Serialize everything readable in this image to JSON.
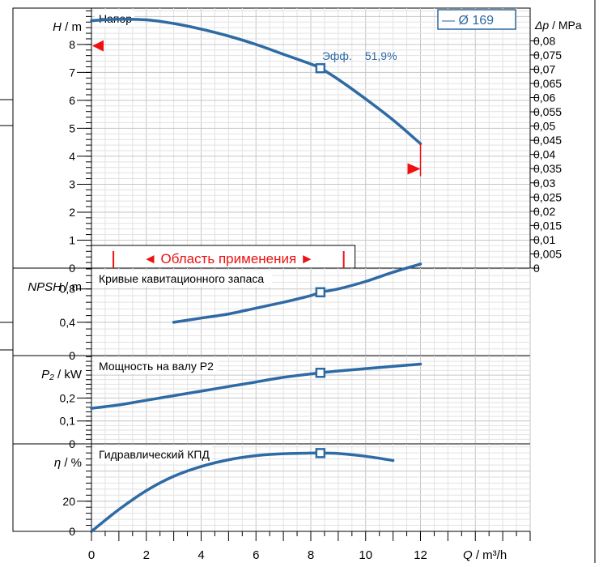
{
  "colors": {
    "curve": "#2e6aa4",
    "grid_minor": "#e2e2e2",
    "grid_major": "#c6c6c6",
    "marker_red": "#ee1111",
    "text": "#000000"
  },
  "legend": {
    "label": "— Ø 169"
  },
  "x_axis": {
    "label_q": "Q",
    "label_unit": " / m³/h",
    "ticks": [
      "0",
      "2",
      "4",
      "6",
      "8",
      "10",
      "12"
    ],
    "tick_values": [
      0,
      2,
      4,
      6,
      8,
      10,
      12
    ],
    "xlim": [
      0,
      16
    ]
  },
  "operating_point_q": 8.35,
  "panels": {
    "head": {
      "title": "Напор",
      "ylabel_sym": "H",
      "ylabel_unit": " / m",
      "yticks": [
        "0",
        "1",
        "2",
        "3",
        "4",
        "5",
        "6",
        "7",
        "8"
      ],
      "ytick_values": [
        0,
        1,
        2,
        3,
        4,
        5,
        6,
        7,
        8
      ],
      "ylim": [
        0,
        9.3
      ],
      "dp_label_sym": "Δp",
      "dp_label_unit": " / MPa",
      "dp_ticks": [
        "0",
        "0,005",
        "0,01",
        "0,015",
        "0,02",
        "0,025",
        "0,03",
        "0,035",
        "0,04",
        "0,045",
        "0,05",
        "0,055",
        "0,06",
        "0,065",
        "0,07",
        "0,075",
        "0,08"
      ],
      "dp_tick_values": [
        0,
        0.005,
        0.01,
        0.015,
        0.02,
        0.025,
        0.03,
        0.035,
        0.04,
        0.045,
        0.05,
        0.055,
        0.06,
        0.065,
        0.07,
        0.075,
        0.08
      ],
      "eff_label": "Эфф.",
      "eff_value": "51,9%",
      "range_label": "◄ Область применения ►",
      "range_q": [
        0.8,
        9.2
      ],
      "left_marker_h": 7.95,
      "right_marker_h": 3.55
    },
    "npsh": {
      "title": "Кривые кавитационного запаса",
      "ylabel_sym": "NPSH",
      "ylabel_unit": " / m",
      "yticks": [
        "0",
        "0,4",
        "0,8"
      ],
      "ytick_values": [
        0,
        0.4,
        0.8
      ],
      "ylim": [
        0,
        1.05
      ]
    },
    "power": {
      "title": "Мощность на валу P2",
      "ylabel_sym": "P₂",
      "ylabel_unit": " / kW",
      "yticks": [
        "0",
        "0,1",
        "0,2"
      ],
      "ytick_values": [
        0,
        0.1,
        0.2
      ],
      "ylim": [
        0,
        0.385
      ]
    },
    "eff": {
      "title": "Гидравлический КПД",
      "ylabel_sym": "η",
      "ylabel_unit": " / %",
      "yticks": [
        "0",
        "20"
      ],
      "ytick_values": [
        0,
        20
      ],
      "ylim": [
        0,
        58
      ]
    }
  },
  "chart_data": [
    {
      "type": "line",
      "title": "Напор",
      "xlabel": "Q / m³/h",
      "ylabel": "H / m",
      "y2label": "Δp / MPa",
      "series": [
        {
          "name": "Ø 169",
          "x": [
            0,
            1,
            2,
            3,
            4,
            5,
            6,
            7,
            8,
            8.35,
            9,
            10,
            11,
            12
          ],
          "y": [
            8.85,
            8.9,
            8.88,
            8.75,
            8.55,
            8.3,
            8.0,
            7.65,
            7.3,
            7.15,
            6.75,
            6.05,
            5.3,
            4.45
          ]
        }
      ],
      "operating_point": {
        "x": 8.35,
        "y": 7.15,
        "efficiency": "51,9%"
      },
      "xlim": [
        0,
        16
      ],
      "ylim": [
        0,
        9.3
      ]
    },
    {
      "type": "line",
      "title": "Кривые кавитационного запаса",
      "xlabel": "Q / m³/h",
      "ylabel": "NPSH / m",
      "series": [
        {
          "name": "Ø 169",
          "x": [
            3,
            4,
            5,
            6,
            7,
            8,
            8.35,
            9,
            10,
            11,
            12
          ],
          "y": [
            0.4,
            0.45,
            0.5,
            0.57,
            0.64,
            0.72,
            0.76,
            0.8,
            0.89,
            1.0,
            1.1
          ]
        }
      ],
      "operating_point": {
        "x": 8.35,
        "y": 0.76
      },
      "xlim": [
        0,
        16
      ],
      "ylim": [
        0,
        1.05
      ]
    },
    {
      "type": "line",
      "title": "Мощность на валу P2",
      "xlabel": "Q / m³/h",
      "ylabel": "P₂ / kW",
      "series": [
        {
          "name": "Ø 169",
          "x": [
            0,
            1,
            2,
            3,
            4,
            5,
            6,
            7,
            8,
            8.35,
            9,
            10,
            11,
            12
          ],
          "y": [
            0.155,
            0.17,
            0.19,
            0.21,
            0.23,
            0.25,
            0.27,
            0.29,
            0.305,
            0.31,
            0.318,
            0.328,
            0.338,
            0.348
          ]
        }
      ],
      "operating_point": {
        "x": 8.35,
        "y": 0.31
      },
      "xlim": [
        0,
        16
      ],
      "ylim": [
        0,
        0.385
      ]
    },
    {
      "type": "line",
      "title": "Гидравлический КПД",
      "xlabel": "Q / m³/h",
      "ylabel": "η / %",
      "series": [
        {
          "name": "Ø 169",
          "x": [
            0,
            1,
            2,
            3,
            4,
            5,
            6,
            7,
            8,
            8.35,
            9,
            10,
            11
          ],
          "y": [
            0,
            14.5,
            27,
            36.5,
            43,
            47.5,
            50.2,
            51.5,
            51.9,
            51.9,
            51.6,
            49.8,
            47
          ]
        }
      ],
      "operating_point": {
        "x": 8.35,
        "y": 51.9
      },
      "xlim": [
        0,
        16
      ],
      "ylim": [
        0,
        58
      ]
    }
  ]
}
